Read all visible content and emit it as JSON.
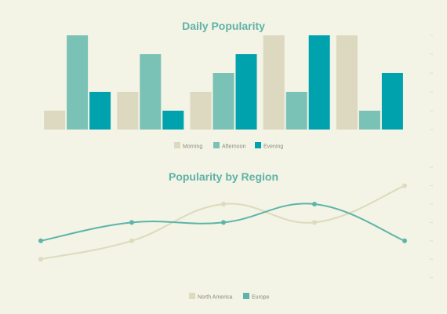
{
  "colors": {
    "background": "#f3f3e6",
    "title": "#5fb3a6",
    "morning": "#ddd9c0",
    "afternoon": "#7bc2b6",
    "evening": "#00a2ad",
    "north_america": "#dcdbbd",
    "europe": "#5cb5a8",
    "legend_text": "#8c8c7c"
  },
  "chart_data": [
    {
      "type": "bar",
      "title": "Daily Popularity",
      "categories": [
        "1",
        "2",
        "3",
        "4",
        "5"
      ],
      "series": [
        {
          "name": "Morning",
          "values": [
            1,
            2,
            2,
            5,
            5
          ]
        },
        {
          "name": "Afternoon",
          "values": [
            5,
            4,
            3,
            2,
            1
          ]
        },
        {
          "name": "Evening",
          "values": [
            2,
            1,
            4,
            5,
            3
          ]
        }
      ],
      "ylim": [
        0,
        5
      ],
      "grid": false,
      "legend_position": "bottom"
    },
    {
      "type": "line",
      "title": "Popularity by Region",
      "categories": [
        "1",
        "2",
        "3",
        "4",
        "5"
      ],
      "series": [
        {
          "name": "North America",
          "values": [
            1,
            2,
            4,
            3,
            5
          ]
        },
        {
          "name": "Europe",
          "values": [
            2,
            3,
            3,
            4,
            2
          ]
        }
      ],
      "ylim": [
        0,
        5
      ],
      "smooth": true,
      "grid": false,
      "legend_position": "bottom"
    }
  ]
}
